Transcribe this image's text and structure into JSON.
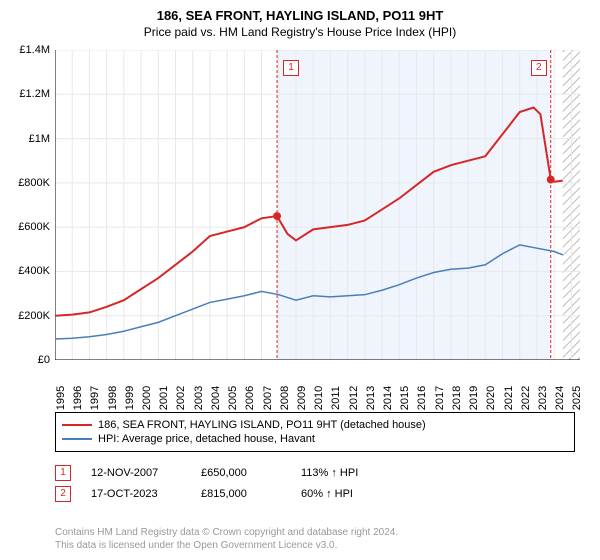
{
  "title": "186, SEA FRONT, HAYLING ISLAND, PO11 9HT",
  "subtitle": "Price paid vs. HM Land Registry's House Price Index (HPI)",
  "chart": {
    "type": "line",
    "background_color": "#ffffff",
    "grid_color": "#e8e8e8",
    "shaded_region_color": "#f0f4fc",
    "hatched_region_color": "#e8e8e8",
    "xlim": [
      1995,
      2025.5
    ],
    "ylim": [
      0,
      1400000
    ],
    "yticks": [
      {
        "v": 0,
        "label": "£0"
      },
      {
        "v": 200000,
        "label": "£200K"
      },
      {
        "v": 400000,
        "label": "£400K"
      },
      {
        "v": 600000,
        "label": "£600K"
      },
      {
        "v": 800000,
        "label": "£800K"
      },
      {
        "v": 1000000,
        "label": "£1M"
      },
      {
        "v": 1200000,
        "label": "£1.2M"
      },
      {
        "v": 1400000,
        "label": "£1.4M"
      }
    ],
    "xticks": [
      1995,
      1996,
      1997,
      1998,
      1999,
      2000,
      2001,
      2002,
      2003,
      2004,
      2005,
      2006,
      2007,
      2008,
      2009,
      2010,
      2011,
      2012,
      2013,
      2014,
      2015,
      2016,
      2017,
      2018,
      2019,
      2020,
      2021,
      2022,
      2023,
      2024,
      2025
    ],
    "shaded_start": 2007.9,
    "shaded_end": 2023.8,
    "hatched_start": 2024.5,
    "hatched_end": 2025.5,
    "series": [
      {
        "name": "property",
        "color": "#d62728",
        "width": 2,
        "data": [
          [
            1995,
            200000
          ],
          [
            1996,
            205000
          ],
          [
            1997,
            215000
          ],
          [
            1998,
            240000
          ],
          [
            1999,
            270000
          ],
          [
            2000,
            320000
          ],
          [
            2001,
            370000
          ],
          [
            2002,
            430000
          ],
          [
            2003,
            490000
          ],
          [
            2004,
            560000
          ],
          [
            2005,
            580000
          ],
          [
            2006,
            600000
          ],
          [
            2007,
            640000
          ],
          [
            2007.9,
            650000
          ],
          [
            2008.5,
            570000
          ],
          [
            2009,
            540000
          ],
          [
            2010,
            590000
          ],
          [
            2011,
            600000
          ],
          [
            2012,
            610000
          ],
          [
            2013,
            630000
          ],
          [
            2014,
            680000
          ],
          [
            2015,
            730000
          ],
          [
            2016,
            790000
          ],
          [
            2017,
            850000
          ],
          [
            2018,
            880000
          ],
          [
            2019,
            900000
          ],
          [
            2020,
            920000
          ],
          [
            2021,
            1020000
          ],
          [
            2022,
            1120000
          ],
          [
            2022.8,
            1140000
          ],
          [
            2023.2,
            1110000
          ],
          [
            2023.8,
            815000
          ],
          [
            2024,
            805000
          ],
          [
            2024.5,
            810000
          ]
        ]
      },
      {
        "name": "hpi",
        "color": "#4a7ebb",
        "width": 1.5,
        "data": [
          [
            1995,
            95000
          ],
          [
            1996,
            98000
          ],
          [
            1997,
            105000
          ],
          [
            1998,
            115000
          ],
          [
            1999,
            130000
          ],
          [
            2000,
            150000
          ],
          [
            2001,
            170000
          ],
          [
            2002,
            200000
          ],
          [
            2003,
            230000
          ],
          [
            2004,
            260000
          ],
          [
            2005,
            275000
          ],
          [
            2006,
            290000
          ],
          [
            2007,
            310000
          ],
          [
            2008,
            295000
          ],
          [
            2009,
            270000
          ],
          [
            2010,
            290000
          ],
          [
            2011,
            285000
          ],
          [
            2012,
            290000
          ],
          [
            2013,
            295000
          ],
          [
            2014,
            315000
          ],
          [
            2015,
            340000
          ],
          [
            2016,
            370000
          ],
          [
            2017,
            395000
          ],
          [
            2018,
            410000
          ],
          [
            2019,
            415000
          ],
          [
            2020,
            430000
          ],
          [
            2021,
            480000
          ],
          [
            2022,
            520000
          ],
          [
            2023,
            505000
          ],
          [
            2024,
            490000
          ],
          [
            2024.5,
            475000
          ]
        ]
      }
    ],
    "sale_markers": [
      {
        "n": 1,
        "x": 2007.9,
        "y": 650000,
        "color": "#d62728"
      },
      {
        "n": 2,
        "x": 2023.8,
        "y": 815000,
        "color": "#d62728"
      }
    ]
  },
  "legend": {
    "items": [
      {
        "color": "#d62728",
        "label": "186, SEA FRONT, HAYLING ISLAND, PO11 9HT (detached house)"
      },
      {
        "color": "#4a7ebb",
        "label": "HPI: Average price, detached house, Havant"
      }
    ]
  },
  "sales": [
    {
      "n": "1",
      "date": "12-NOV-2007",
      "price": "£650,000",
      "pct": "113% ↑ HPI",
      "color": "#d62728"
    },
    {
      "n": "2",
      "date": "17-OCT-2023",
      "price": "£815,000",
      "pct": "60% ↑ HPI",
      "color": "#d62728"
    }
  ],
  "footer": {
    "line1": "Contains HM Land Registry data © Crown copyright and database right 2024.",
    "line2": "This data is licensed under the Open Government Licence v3.0."
  }
}
